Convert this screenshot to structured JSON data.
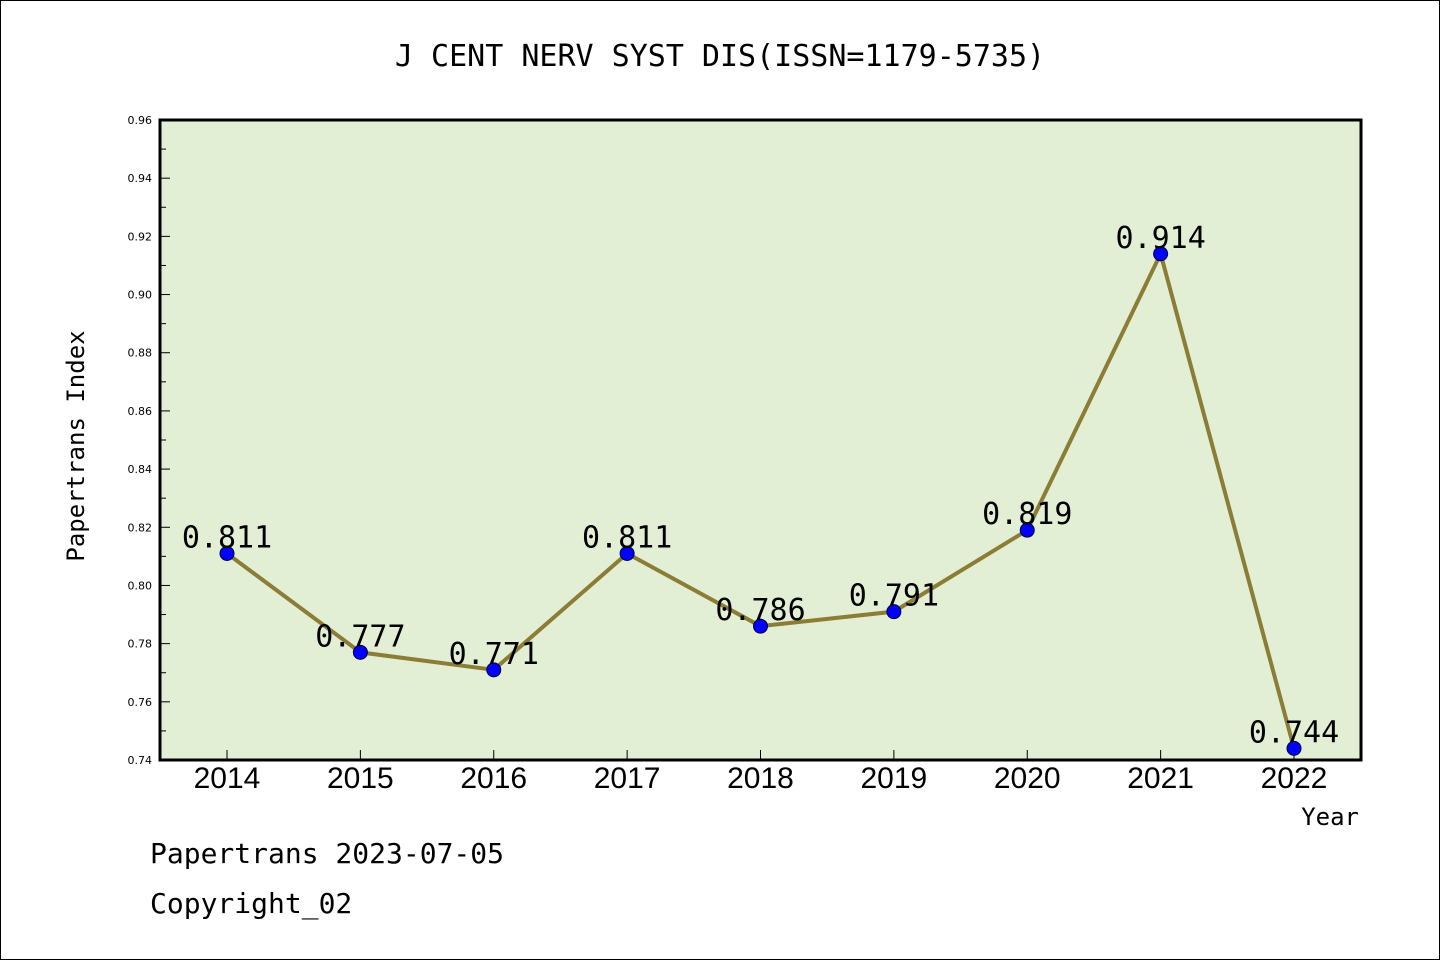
{
  "chart_data": {
    "type": "line",
    "title": "J CENT NERV SYST DIS(ISSN=1179-5735)",
    "xlabel": "Year",
    "ylabel": "Papertrans Index",
    "categories": [
      "2014",
      "2015",
      "2016",
      "2017",
      "2018",
      "2019",
      "2020",
      "2021",
      "2022"
    ],
    "values": [
      0.811,
      0.777,
      0.771,
      0.811,
      0.786,
      0.791,
      0.819,
      0.914,
      0.744
    ],
    "data_labels": [
      "0.811",
      "0.777",
      "0.771",
      "0.811",
      "0.786",
      "0.791",
      "0.819",
      "0.914",
      "0.744"
    ],
    "ylim": [
      0.74,
      0.96
    ],
    "yticks": [
      "0.74",
      "0.76",
      "0.78",
      "0.80",
      "0.82",
      "0.84",
      "0.86",
      "0.88",
      "0.90",
      "0.92",
      "0.94",
      "0.96"
    ],
    "grid": false,
    "colors": {
      "plot_background": "#e2efd5",
      "line": "#8b7d35",
      "marker": "#0000ff"
    }
  },
  "footer": {
    "date_line": "Papertrans 2023-07-05",
    "copyright": "Copyright_02"
  }
}
